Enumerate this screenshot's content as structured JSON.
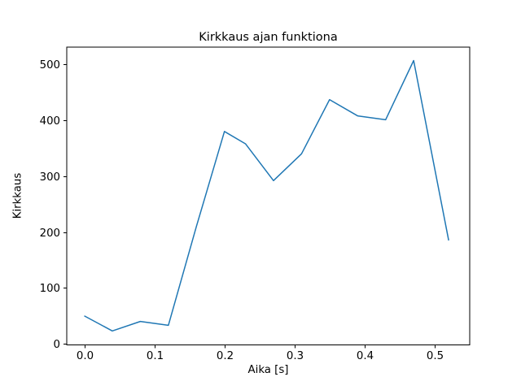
{
  "chart_data": {
    "type": "line",
    "title": "Kirkkaus ajan funktiona",
    "xlabel": "Aika [s]",
    "ylabel": "Kirkkaus",
    "x": [
      0.0,
      0.04,
      0.08,
      0.12,
      0.16,
      0.2,
      0.23,
      0.27,
      0.31,
      0.35,
      0.39,
      0.43,
      0.47,
      0.52
    ],
    "y": [
      50,
      23,
      40,
      33,
      210,
      380,
      358,
      292,
      340,
      437,
      408,
      401,
      507,
      185
    ],
    "series": [
      {
        "name": "Kirkkaus",
        "color": "#1f77b4",
        "line_width": 1.5
      }
    ],
    "xticks": {
      "values": [
        0.0,
        0.1,
        0.2,
        0.3,
        0.4,
        0.5
      ],
      "labels": [
        "0.0",
        "0.1",
        "0.2",
        "0.3",
        "0.4",
        "0.5"
      ]
    },
    "yticks": {
      "values": [
        0,
        100,
        200,
        300,
        400,
        500
      ],
      "labels": [
        "0",
        "100",
        "200",
        "300",
        "400",
        "500"
      ]
    },
    "xlim": [
      -0.025,
      0.55
    ],
    "ylim": [
      -2,
      531
    ],
    "grid": false,
    "legend_position": "none",
    "line_color": "#1f77b4",
    "axis_color": "#000000",
    "background_color": "#ffffff"
  }
}
